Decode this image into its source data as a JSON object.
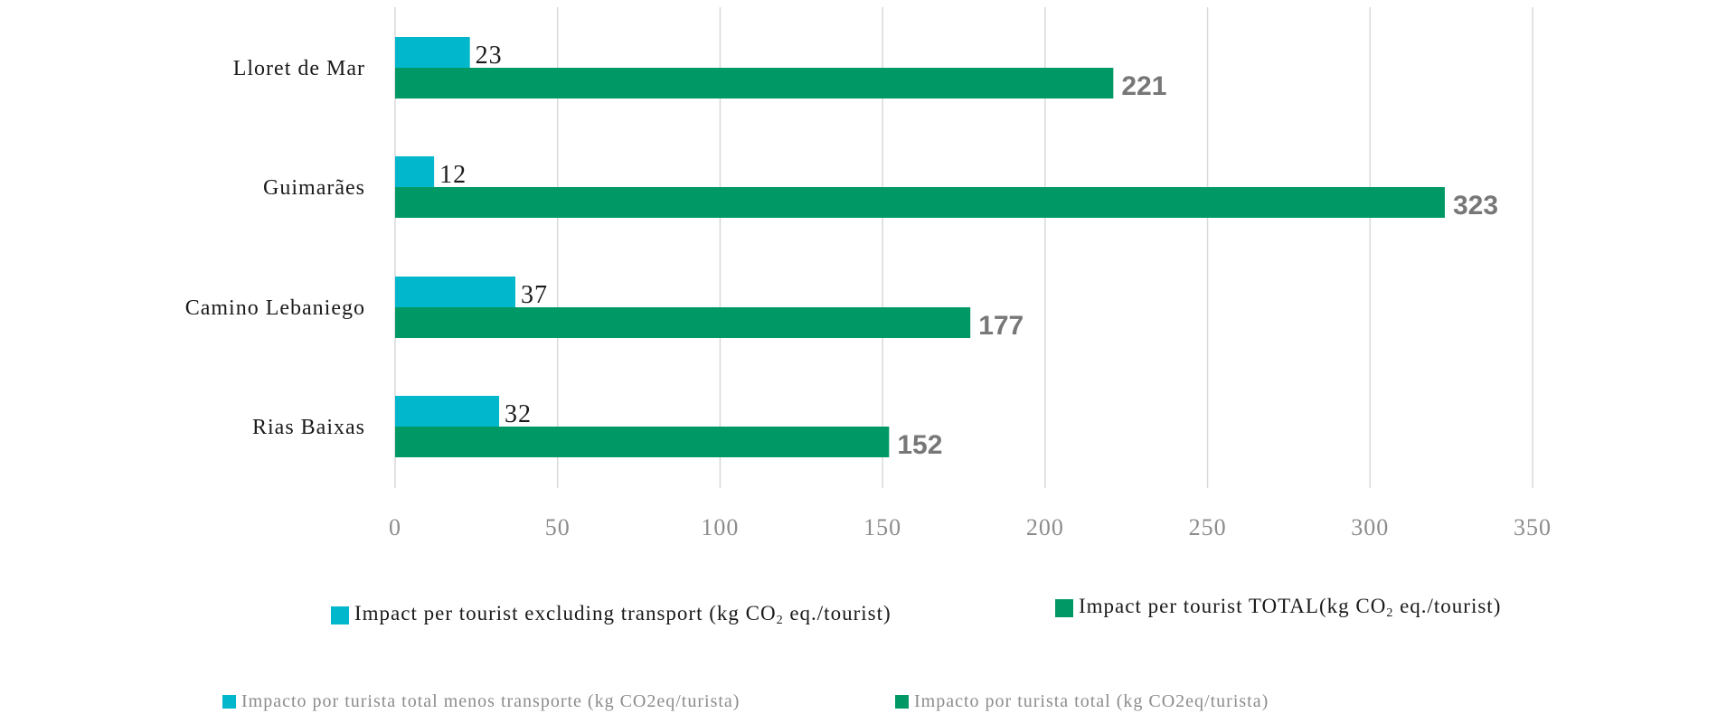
{
  "chart_data": {
    "type": "bar",
    "orientation": "horizontal",
    "categories": [
      "Lloret de Mar",
      "Guimarães",
      "Camino Lebaniego",
      "Rias Baixas"
    ],
    "series": [
      {
        "name": "Impact per tourist excluding transport (kg CO2 eq./tourist)",
        "color": "#00b7cc",
        "values": [
          23,
          12,
          37,
          32
        ]
      },
      {
        "name": "Impact per tourist TOTAL (kg CO2 eq./tourist)",
        "color": "#009966",
        "values": [
          221,
          323,
          177,
          152
        ]
      }
    ],
    "xlim": [
      0,
      350
    ],
    "xticks": [
      "0",
      "50",
      "100",
      "150",
      "200",
      "250",
      "300",
      "350"
    ],
    "grid": "vertical",
    "legend_placement": "bottom"
  },
  "legend_en": {
    "excl_prefix": "Impact per tourist excluding transport (kg CO",
    "total_prefix": "Impact per tourist TOTAL(kg CO",
    "sub": "2",
    "excl_suffix": " eq./tourist)",
    "total_suffix": " eq./tourist)"
  },
  "legend_es": {
    "excl": "Impacto por turista total menos transporte (kg CO2eq/turista)",
    "total": "Impacto por turista total (kg CO2eq/turista)"
  }
}
